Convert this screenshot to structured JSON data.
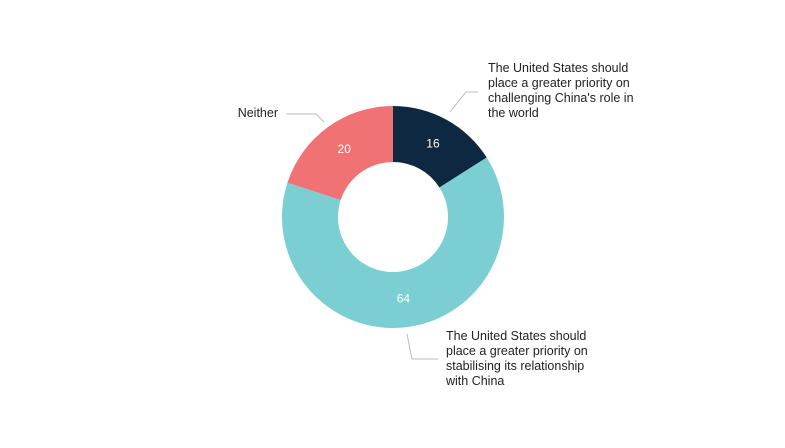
{
  "chart_data": {
    "type": "donut",
    "categories": [
      "The United States should place a greater priority on challenging China's role in the world",
      "The United States should place a greater priority on stabilising its relationship with China",
      "Neither"
    ],
    "values": [
      16,
      64,
      20
    ],
    "colors": [
      "#0d2840",
      "#7bcfd2",
      "#f07274"
    ]
  }
}
